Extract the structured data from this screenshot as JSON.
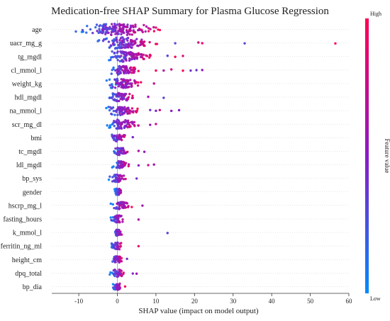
{
  "chart_data": {
    "type": "scatter",
    "subtype": "shap-summary-beeswarm",
    "title": "Medication-free SHAP Summary for Plasma Glucose Regression",
    "xlabel": "SHAP value (impact on model output)",
    "xlim": [
      -17,
      60
    ],
    "x_ticks": [
      -10,
      0,
      10,
      20,
      30,
      40,
      50,
      60
    ],
    "zero_line": true,
    "grid": false,
    "colorbar": {
      "label": "Feature value",
      "high_label": "High",
      "low_label": "Low",
      "high_color": "#ff0052",
      "low_color": "#008bfb"
    },
    "features": [
      {
        "name": "age",
        "min": -14,
        "max": 14,
        "extras": []
      },
      {
        "name": "uacr_mg_g",
        "min": -7,
        "max": 12,
        "extras": [
          15,
          21,
          22,
          33,
          56.5
        ]
      },
      {
        "name": "tg_mgdl",
        "min": -5,
        "max": 11,
        "extras": [
          13,
          15,
          17
        ]
      },
      {
        "name": "cl_mmol_l",
        "min": -4,
        "max": 7,
        "extras": [
          10,
          12,
          14,
          17,
          19,
          20.5,
          22
        ]
      },
      {
        "name": "weight_kg",
        "min": -5,
        "max": 8,
        "extras": [
          9.5
        ]
      },
      {
        "name": "hdl_mgdl",
        "min": -4,
        "max": 6,
        "extras": [
          8,
          12
        ]
      },
      {
        "name": "na_mmol_l",
        "min": -4,
        "max": 7,
        "extras": [
          8.5,
          10,
          11,
          14,
          16
        ]
      },
      {
        "name": "scr_mg_dl",
        "min": -4,
        "max": 7,
        "extras": [
          8.5,
          10
        ]
      },
      {
        "name": "bmi",
        "min": -2.5,
        "max": 3,
        "extras": [
          4
        ]
      },
      {
        "name": "tc_mgdl",
        "min": -2,
        "max": 4,
        "extras": [
          5.5,
          7
        ]
      },
      {
        "name": "ldl_mgdl",
        "min": -2,
        "max": 4,
        "extras": [
          5.5,
          8,
          9.5
        ]
      },
      {
        "name": "bp_sys",
        "min": -2.5,
        "max": 3,
        "extras": [
          5
        ]
      },
      {
        "name": "gender",
        "min": -1,
        "max": 1.5,
        "extras": []
      },
      {
        "name": "hscrp_mg_l",
        "min": -2.5,
        "max": 4,
        "extras": [
          6.5
        ]
      },
      {
        "name": "fasting_hours",
        "min": -2.5,
        "max": 2.5,
        "extras": [
          5.5
        ]
      },
      {
        "name": "k_mmol_l",
        "min": -1.5,
        "max": 2,
        "extras": [
          13
        ]
      },
      {
        "name": "ferritin_ng_ml",
        "min": -2.5,
        "max": 2,
        "extras": [
          5.5
        ]
      },
      {
        "name": "height_cm",
        "min": -2,
        "max": 1.5,
        "extras": [
          2.5
        ]
      },
      {
        "name": "dpq_total",
        "min": -2.5,
        "max": 2.5,
        "extras": [
          4,
          5
        ]
      },
      {
        "name": "bp_dia",
        "min": -1.5,
        "max": 1.5,
        "extras": [
          2
        ]
      }
    ]
  }
}
